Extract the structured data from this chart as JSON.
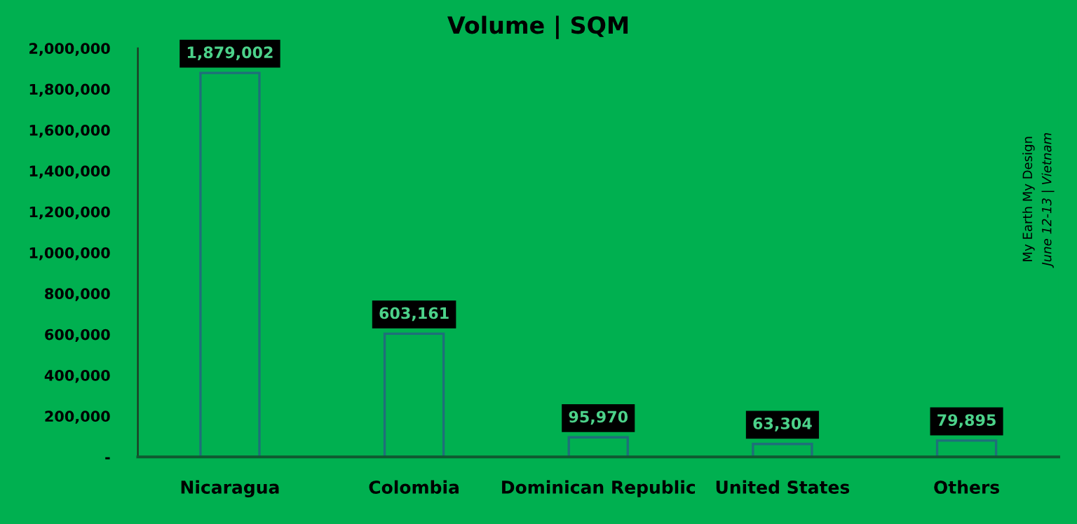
{
  "chart_data": {
    "type": "bar",
    "title": "Volume | SQM",
    "categories": [
      "Nicaragua",
      "Colombia",
      "Dominican Republic",
      "United States",
      "Others"
    ],
    "values": [
      1879002,
      603161,
      95970,
      63304,
      79895
    ],
    "value_labels": [
      "1,879,002",
      "603,161",
      "95,970",
      "63,304",
      "79,895"
    ],
    "color": "#00b050",
    "ylim": [
      0,
      2000000
    ],
    "yticks": [
      {
        "value": 0,
        "label": "-"
      },
      {
        "value": 200000,
        "label": "200,000"
      },
      {
        "value": 400000,
        "label": "400,000"
      },
      {
        "value": 600000,
        "label": "600,000"
      },
      {
        "value": 800000,
        "label": "800,000"
      },
      {
        "value": 1000000,
        "label": "1,000,000"
      },
      {
        "value": 1200000,
        "label": "1,200,000"
      },
      {
        "value": 1400000,
        "label": "1,400,000"
      },
      {
        "value": 1600000,
        "label": "1,600,000"
      },
      {
        "value": 1800000,
        "label": "1,800,000"
      },
      {
        "value": 2000000,
        "label": "2,000,000"
      }
    ],
    "grid": false,
    "legend": false,
    "annotations": [
      "My Earth My Design",
      "June 12-13 | Vietnam"
    ]
  }
}
